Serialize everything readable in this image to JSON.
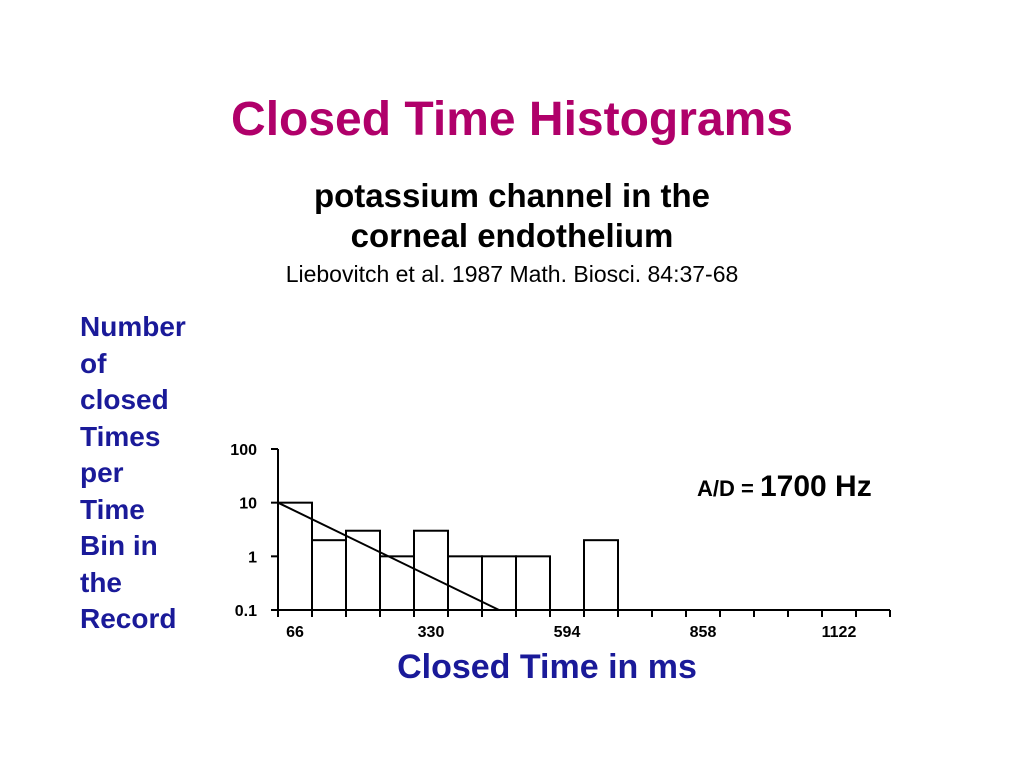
{
  "slide": {
    "title": "Closed Time Histograms",
    "subtitle_lines": [
      "potassium channel in the",
      "corneal endothelium"
    ],
    "citation": "Liebovitch et al. 1987 Math. Biosci. 84:37-68",
    "annotation": {
      "label": "A/D = ",
      "value": "1700 Hz"
    }
  },
  "colors": {
    "title": "#b0006a",
    "axis_labels": "#1a1a99"
  },
  "chart_data": {
    "type": "bar",
    "xlabel": "Closed Time in ms",
    "ylabel_lines": [
      "Number",
      "of",
      "closed",
      "Times",
      "per",
      "Time",
      "Bin in",
      "the",
      "Record"
    ],
    "yscale": "log",
    "ylim": [
      0.1,
      100
    ],
    "yticks": [
      100,
      10,
      1,
      0.1
    ],
    "ytick_labels": [
      "100",
      "10",
      "1",
      "0.1"
    ],
    "xlim": [
      33,
      1221
    ],
    "xticks": [
      66,
      330,
      594,
      858,
      1122
    ],
    "xtick_labels": [
      "66",
      "330",
      "594",
      "858",
      "1122"
    ],
    "bin_width_ms": 66,
    "x_bin_starts": [
      33,
      99,
      165,
      231,
      297,
      363,
      429,
      495,
      561,
      627,
      693,
      759,
      825,
      891,
      957,
      1023,
      1089,
      1155
    ],
    "values": [
      10,
      2,
      3,
      1,
      3,
      1,
      1,
      1,
      0,
      2,
      0,
      0,
      0,
      0,
      0,
      0,
      0,
      0
    ],
    "fit_line": {
      "x": [
        33,
        462
      ],
      "y": [
        10,
        0.1
      ]
    }
  }
}
